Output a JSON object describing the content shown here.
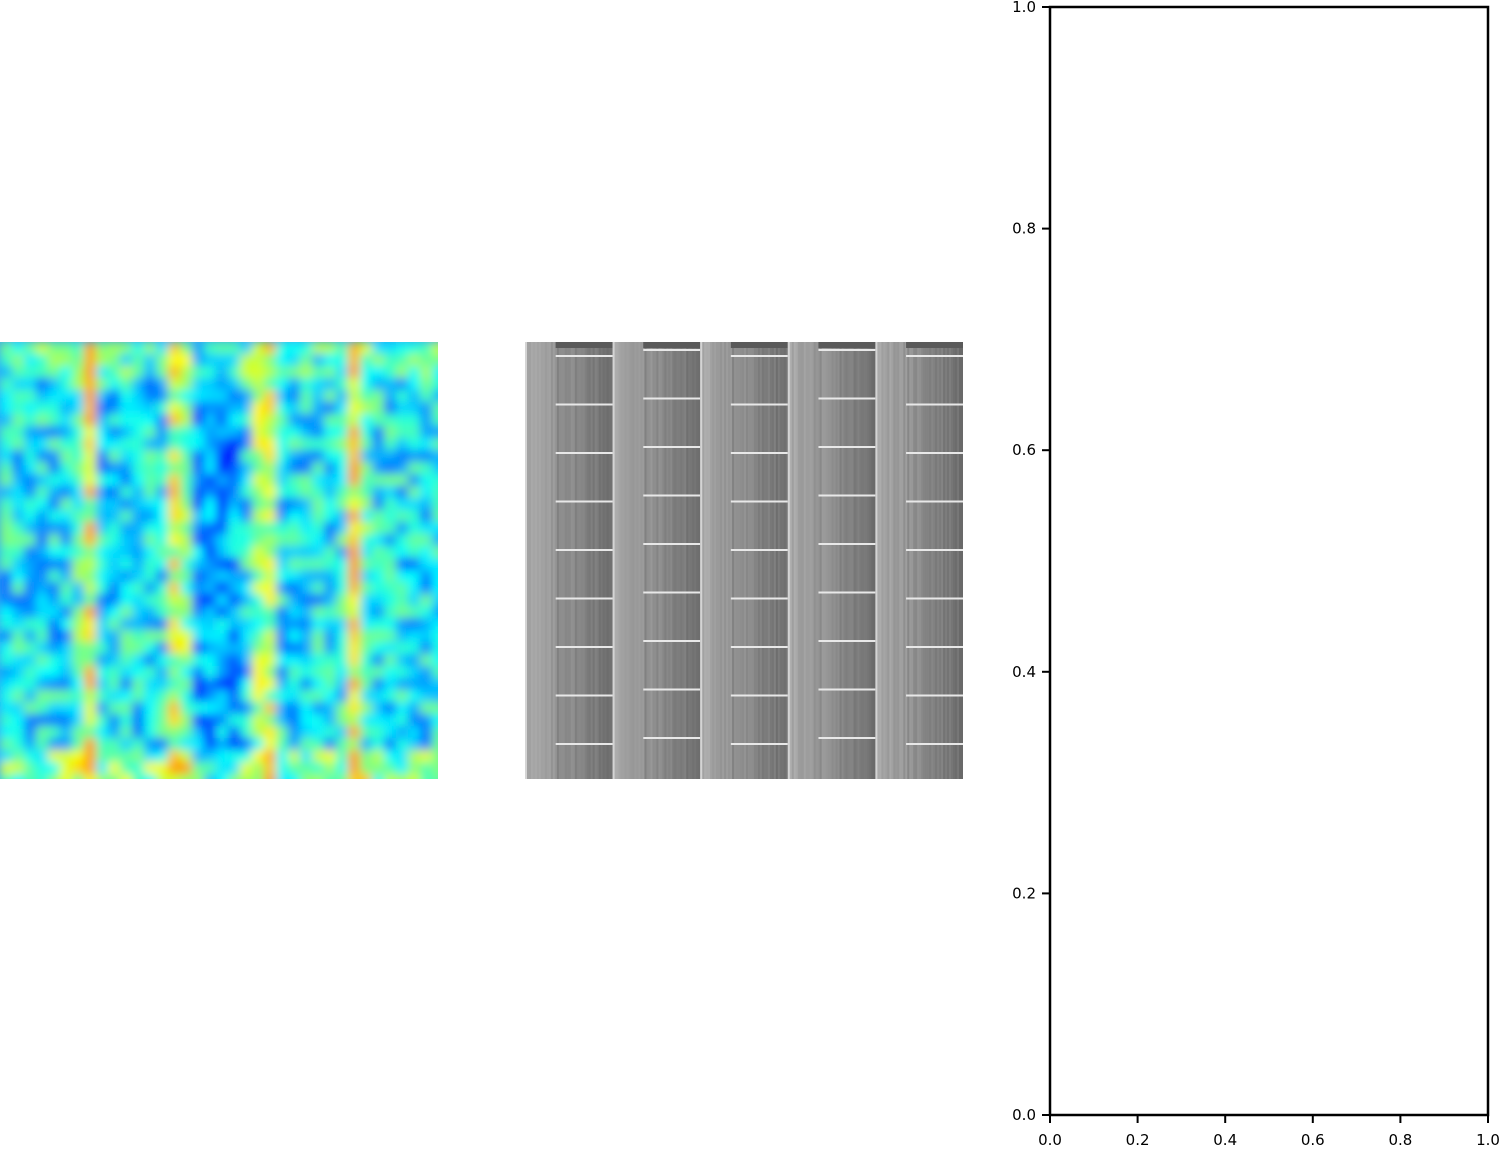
{
  "chart_data": [
    {
      "type": "heatmap",
      "description_role": "image",
      "colormap": "jet"
    },
    {
      "type": "heatmap",
      "description_role": "image",
      "colormap": "gray"
    },
    {
      "type": "line",
      "series": [],
      "xlim": [
        0.0,
        1.0
      ],
      "ylim": [
        0.0,
        1.0
      ],
      "x_ticks": [
        "0.0",
        "0.2",
        "0.4",
        "0.6",
        "0.8",
        "1.0"
      ],
      "y_ticks": [
        "0.0",
        "0.2",
        "0.4",
        "0.6",
        "0.8",
        "1.0"
      ],
      "grid": false
    }
  ],
  "colors": {
    "heat_low": "#0a1ee6",
    "heat_mid": "#22c8e8",
    "heat_high": "#e6ef1a",
    "axis": "#000000"
  }
}
